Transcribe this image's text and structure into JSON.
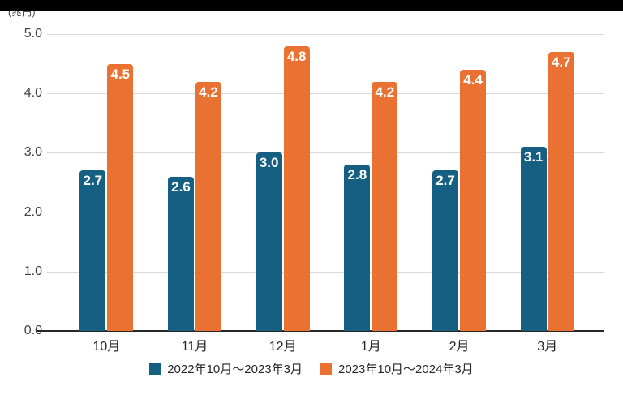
{
  "chart_data": {
    "type": "bar",
    "title": "",
    "unit": "(兆円)",
    "categories": [
      "10月",
      "11月",
      "12月",
      "1月",
      "2月",
      "3月"
    ],
    "series": [
      {
        "name": "2022年10月〜2023年3月",
        "color": "#156082",
        "values": [
          2.7,
          2.6,
          3.0,
          2.8,
          2.7,
          3.1
        ]
      },
      {
        "name": "2023年10月〜2024年3月",
        "color": "#E97132",
        "values": [
          4.5,
          4.2,
          4.8,
          4.2,
          4.4,
          4.7
        ]
      }
    ],
    "ylim": [
      0,
      5
    ],
    "yticks": [
      0.0,
      1.0,
      2.0,
      3.0,
      4.0,
      5.0
    ],
    "ytick_labels": [
      "0.0",
      "1.0",
      "2.0",
      "3.0",
      "4.0",
      "5.0"
    ],
    "grid": true,
    "legend_position": "bottom",
    "value_labels": "inside-top, one decimal, white bold",
    "colors": {
      "grid": "#D9D9D9",
      "axis_line": "#262626",
      "tick_text": "#404040",
      "value_label_text": "#FFFFFF",
      "top_strip": "#000000",
      "background": "#FFFFFF"
    }
  }
}
